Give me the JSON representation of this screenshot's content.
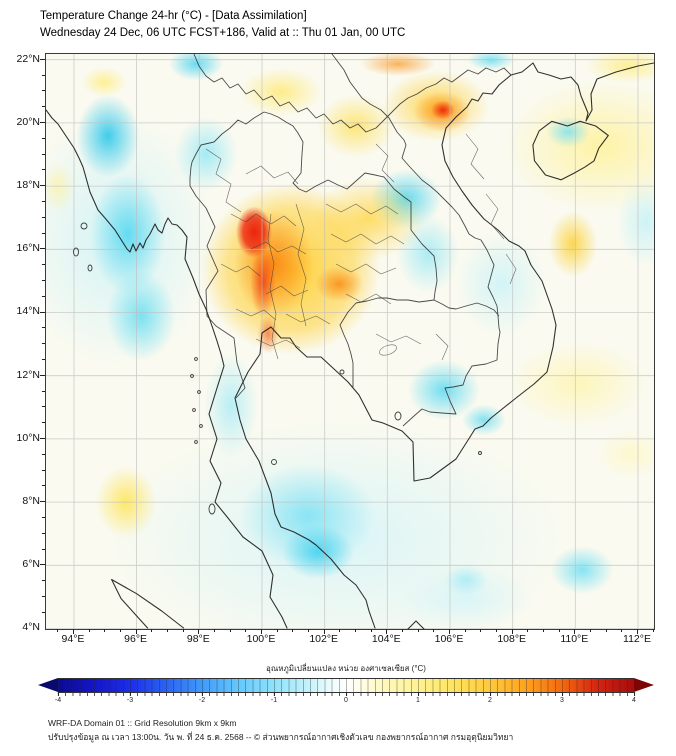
{
  "header": {
    "title": "Temperature Change 24-hr (°C) - [Data Assimilation]",
    "subtitle": "Wednesday 24 Dec, 06 UTC FCST+186, Valid at :: Thu 01 Jan, 00 UTC"
  },
  "map": {
    "lat_ticks": [
      "22°N",
      "20°N",
      "18°N",
      "16°N",
      "14°N",
      "12°N",
      "10°N",
      "8°N",
      "6°N",
      "4°N"
    ],
    "lon_ticks": [
      "94°E",
      "96°E",
      "98°E",
      "100°E",
      "102°E",
      "104°E",
      "106°E",
      "108°E",
      "110°E",
      "112°E"
    ]
  },
  "colorbar": {
    "title": "อุณหภูมิเปลี่ยนแปลง หน่วย องศาเซลเซียส (°C)",
    "ticks": [
      "-4",
      "-3",
      "-2",
      "-1",
      "0",
      "1",
      "2",
      "3",
      "4"
    ],
    "min_color": "#0a0a8f",
    "zero_color": "#ffffff",
    "max_color": "#a50d0d"
  },
  "footer": {
    "line1": "WRF-DA Domain 01 :: Grid Resolution 9km x 9km",
    "line2": "ปรับปรุงข้อมูล ณ เวลา 13:00น. วัน พ. ที่ 24 ธ.ค. 2568 -- © ส่วนพยากรณ์อากาศเชิงตัวเลข กองพยากรณ์อากาศ กรมอุตุนิยมวิทยา"
  },
  "chart_data": {
    "type": "heatmap",
    "title": "Temperature Change 24-hr (°C) - [Data Assimilation]",
    "units": "°C",
    "value_range": [
      -4,
      4
    ],
    "lon_range": [
      93.1,
      112.5
    ],
    "lat_range": [
      4.0,
      22.2
    ],
    "colorbar_ticks": [
      -4,
      -3,
      -2,
      -1,
      0,
      1,
      2,
      3,
      4
    ],
    "grid": true,
    "anomaly_features": [
      {
        "lon": 99.8,
        "lat": 16.6,
        "value_c": 3.5,
        "label": "warm maximum over north-central Thailand"
      },
      {
        "lon": 100.1,
        "lat": 14.8,
        "value_c": 2.8,
        "label": "warm streak down central Thailand"
      },
      {
        "lon": 102.4,
        "lat": 15.0,
        "value_c": 2.5,
        "label": "warm spot northeast Thailand"
      },
      {
        "lon": 105.8,
        "lat": 20.3,
        "value_c": 3.2,
        "label": "warm spot northern Vietnam"
      },
      {
        "lon": 110.0,
        "lat": 16.3,
        "value_c": 1.8,
        "label": "warm patch South China Sea"
      },
      {
        "lon": 95.6,
        "lat": 8.1,
        "value_c": 1.5,
        "label": "warm patch Andaman Sea"
      },
      {
        "lon": 110.5,
        "lat": 20.0,
        "value_c": 1.2,
        "label": "pale warm wash northeast quadrant"
      },
      {
        "lon": 95.1,
        "lat": 19.5,
        "value_c": -1.8,
        "label": "cool area along Myanmar coast"
      },
      {
        "lon": 97.9,
        "lat": 21.7,
        "value_c": -1.2,
        "label": "cool patch at northern edge"
      },
      {
        "lon": 104.6,
        "lat": 17.6,
        "value_c": -1.3,
        "label": "cool blob over central Laos"
      },
      {
        "lon": 105.7,
        "lat": 11.5,
        "value_c": -1.2,
        "label": "cool blob Mekong delta"
      },
      {
        "lon": 101.7,
        "lat": 6.5,
        "value_c": -1.5,
        "label": "cool area Gulf of Thailand / Malay peninsula"
      },
      {
        "lon": 109.8,
        "lat": 19.8,
        "value_c": -0.8,
        "label": "cool patch northern Hainan"
      },
      {
        "lon": 110.2,
        "lat": 5.8,
        "value_c": -1.0,
        "label": "cool patch far southeast sea"
      }
    ]
  }
}
